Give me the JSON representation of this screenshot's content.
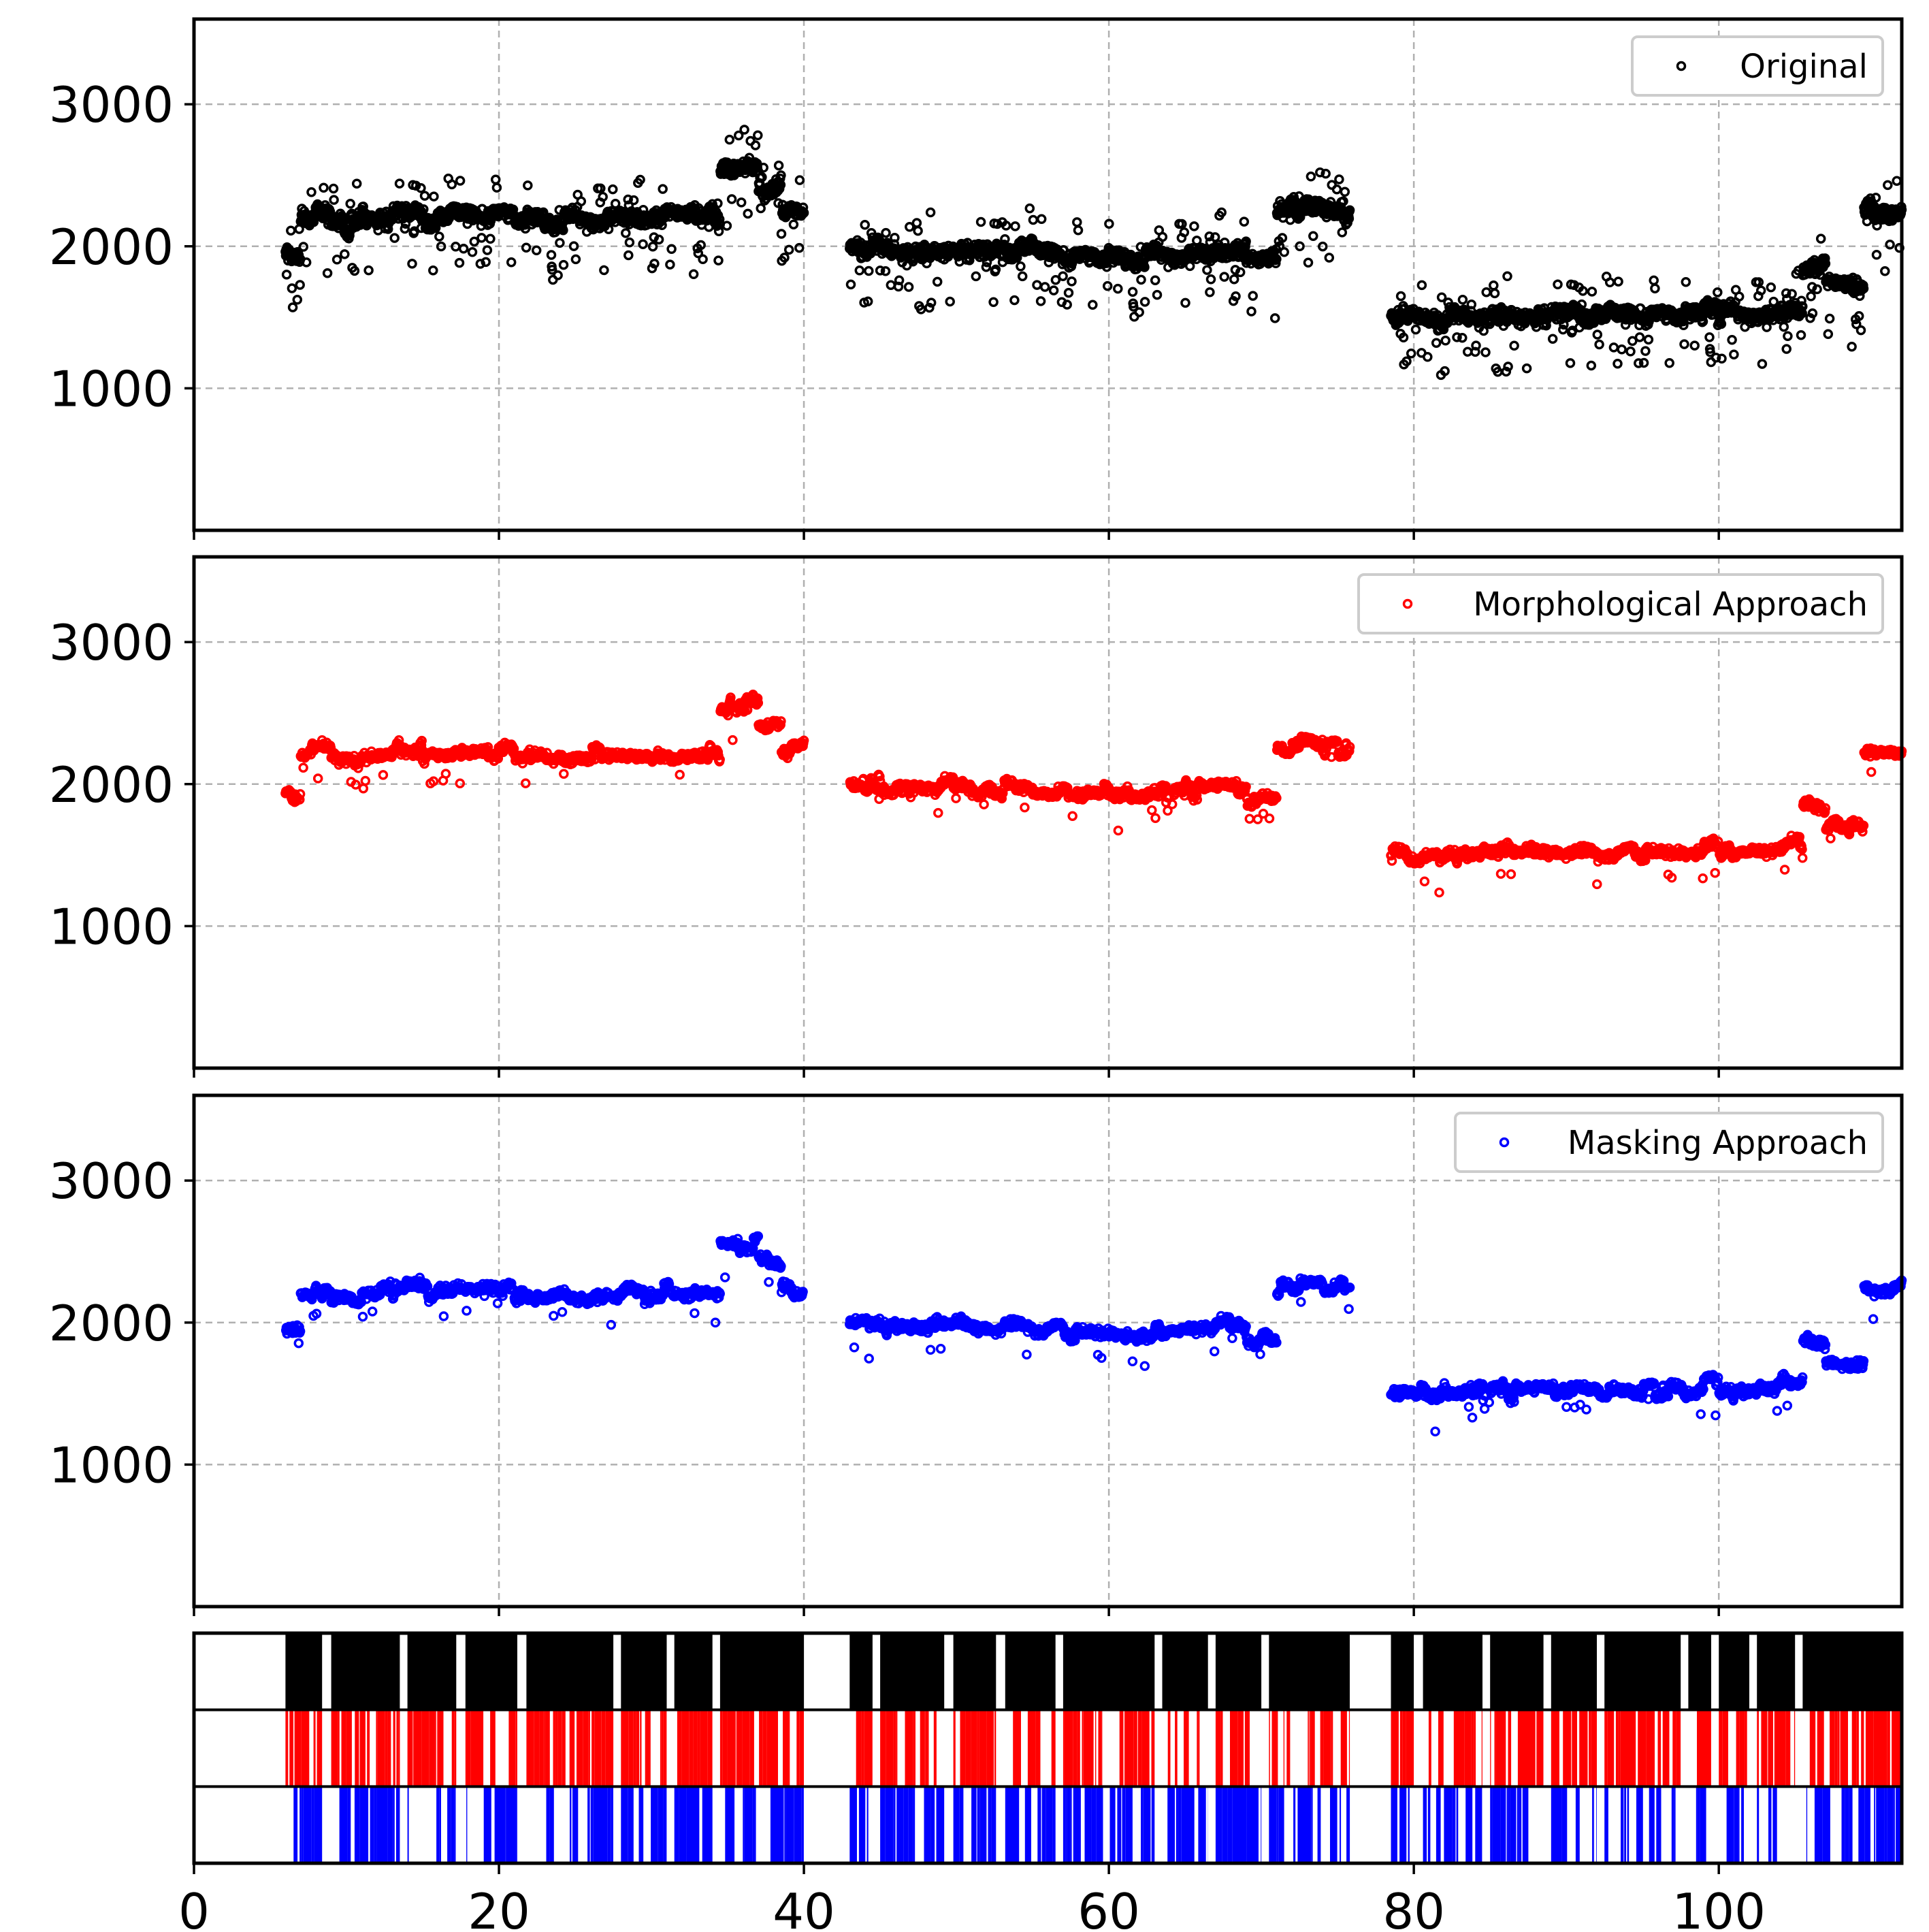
{
  "chart_data": {
    "type": "scatter",
    "x_range": [
      0,
      112
    ],
    "y_range": [
      0,
      3600
    ],
    "x_ticks": [
      0,
      20,
      40,
      60,
      80,
      100
    ],
    "x_tick_labels": [
      "0",
      "20",
      "40",
      "60",
      "80",
      "100"
    ],
    "y_ticks": [
      1000,
      2000,
      3000
    ],
    "y_tick_labels": [
      "1000",
      "2000",
      "3000"
    ],
    "grid": true,
    "legend_position": "top-right",
    "xlabel": "",
    "ylabel": "",
    "panels": [
      {
        "name": "Original",
        "color": "#000000"
      },
      {
        "name": "Morphological Approach",
        "color": "#ff0000"
      },
      {
        "name": "Masking Approach",
        "color": "#0000ff"
      }
    ],
    "segments": [
      {
        "x": [
          6.0,
          40.0
        ],
        "levels": [
          {
            "x": 6,
            "y": 1950
          },
          {
            "x": 7,
            "y": 2200
          },
          {
            "x": 8,
            "y": 2220
          },
          {
            "x": 9,
            "y": 2150
          },
          {
            "x": 11,
            "y": 2200
          },
          {
            "x": 13,
            "y": 2230
          },
          {
            "x": 15,
            "y": 2200
          },
          {
            "x": 17,
            "y": 2220
          },
          {
            "x": 19,
            "y": 2230
          },
          {
            "x": 21,
            "y": 2200
          },
          {
            "x": 23,
            "y": 2180
          },
          {
            "x": 25,
            "y": 2190
          },
          {
            "x": 27,
            "y": 2220
          },
          {
            "x": 29,
            "y": 2200
          },
          {
            "x": 31,
            "y": 2210
          },
          {
            "x": 33,
            "y": 2200
          },
          {
            "x": 34.5,
            "y": 2560
          },
          {
            "x": 36,
            "y": 2560
          },
          {
            "x": 37,
            "y": 2420
          },
          {
            "x": 38.5,
            "y": 2230
          },
          {
            "x": 40,
            "y": 2260
          }
        ]
      },
      {
        "x": [
          43.0,
          75.8
        ],
        "levels": [
          {
            "x": 43,
            "y": 2000
          },
          {
            "x": 45,
            "y": 1980
          },
          {
            "x": 47,
            "y": 1960
          },
          {
            "x": 49,
            "y": 1980
          },
          {
            "x": 51,
            "y": 1960
          },
          {
            "x": 53,
            "y": 1990
          },
          {
            "x": 55,
            "y": 1950
          },
          {
            "x": 57,
            "y": 1930
          },
          {
            "x": 59,
            "y": 1930
          },
          {
            "x": 61,
            "y": 1920
          },
          {
            "x": 63,
            "y": 1940
          },
          {
            "x": 65,
            "y": 1960
          },
          {
            "x": 67,
            "y": 1970
          },
          {
            "x": 69,
            "y": 1880
          },
          {
            "x": 70,
            "y": 1900
          },
          {
            "x": 71,
            "y": 2250
          },
          {
            "x": 72.5,
            "y": 2300
          },
          {
            "x": 74,
            "y": 2250
          },
          {
            "x": 75.8,
            "y": 2270
          }
        ]
      },
      {
        "x": [
          78.5,
          112.0
        ],
        "levels": [
          {
            "x": 78.5,
            "y": 1500
          },
          {
            "x": 80,
            "y": 1490
          },
          {
            "x": 82,
            "y": 1510
          },
          {
            "x": 84,
            "y": 1520
          },
          {
            "x": 86,
            "y": 1510
          },
          {
            "x": 88,
            "y": 1520
          },
          {
            "x": 90,
            "y": 1530
          },
          {
            "x": 92,
            "y": 1510
          },
          {
            "x": 94,
            "y": 1520
          },
          {
            "x": 96,
            "y": 1520
          },
          {
            "x": 98,
            "y": 1530
          },
          {
            "x": 99,
            "y": 1600
          },
          {
            "x": 100,
            "y": 1520
          },
          {
            "x": 102,
            "y": 1530
          },
          {
            "x": 104,
            "y": 1560
          },
          {
            "x": 105.5,
            "y": 1850
          },
          {
            "x": 107,
            "y": 1720
          },
          {
            "x": 108.5,
            "y": 1700
          },
          {
            "x": 109.5,
            "y": 2240
          },
          {
            "x": 112,
            "y": 2250
          }
        ]
      }
    ],
    "mask_strips": [
      {
        "name": "Original",
        "color": "#000000",
        "coverage": [
          [
            6.0,
            8.4
          ],
          [
            9.0,
            13.5
          ],
          [
            14.0,
            17.2
          ],
          [
            17.8,
            21.2
          ],
          [
            21.8,
            27.5
          ],
          [
            28.0,
            31.0
          ],
          [
            31.5,
            34.0
          ],
          [
            34.5,
            40.0
          ],
          [
            43.0,
            44.5
          ],
          [
            45.0,
            49.2
          ],
          [
            49.8,
            52.6
          ],
          [
            53.2,
            56.5
          ],
          [
            57.0,
            63.0
          ],
          [
            63.5,
            66.5
          ],
          [
            67.0,
            70.0
          ],
          [
            70.5,
            75.8
          ],
          [
            78.5,
            80.0
          ],
          [
            80.6,
            84.5
          ],
          [
            85.0,
            88.5
          ],
          [
            89.0,
            92.0
          ],
          [
            92.5,
            97.5
          ],
          [
            98.0,
            99.5
          ],
          [
            100.0,
            102.0
          ],
          [
            102.5,
            105.0
          ],
          [
            105.5,
            112.0
          ]
        ]
      },
      {
        "name": "Morphological Approach",
        "color": "#ff0000",
        "density": 0.8
      },
      {
        "name": "Masking Approach",
        "color": "#0000ff",
        "density": 0.72
      }
    ]
  }
}
